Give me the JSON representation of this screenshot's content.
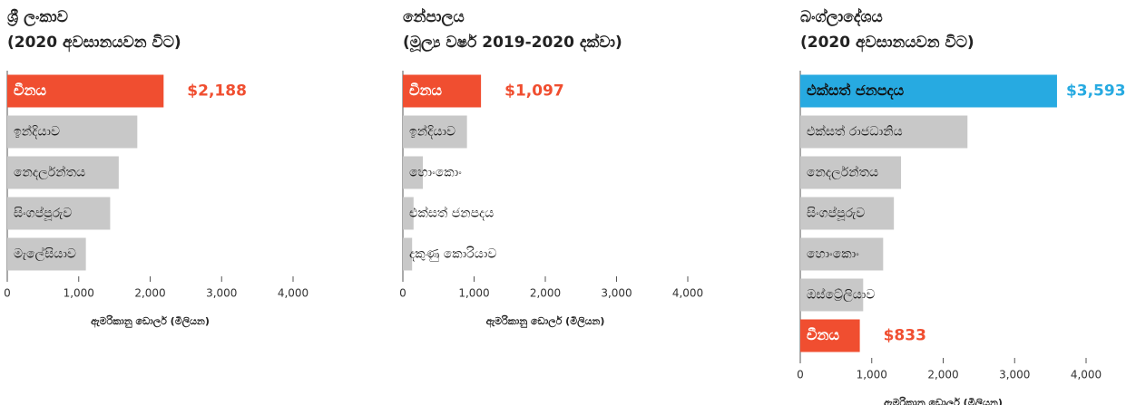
{
  "chart_data": [
    {
      "type": "bar",
      "title": [
        "ශ්‍රී ලංකාව",
        "(2020 අවසානයවන විට)"
      ],
      "categories": [
        "චීනය",
        "ඉන්දියාව",
        "නෙදර්ලන්තය",
        "සිංගප්පූරුව",
        "මැලේසියාව"
      ],
      "values": [
        2188,
        1820,
        1560,
        1440,
        1100
      ],
      "value_labels": [
        "$2,188",
        null,
        null,
        null,
        null
      ],
      "colors": [
        "#f04e30",
        "#c8c8c8",
        "#c8c8c8",
        "#c8c8c8",
        "#c8c8c8"
      ],
      "xlim": [
        0,
        4000
      ],
      "xticks": [
        0,
        {
          "value": 1000,
          "label": "1,000"
        },
        {
          "value": 2000,
          "label": "2,000"
        },
        {
          "value": 3000,
          "label": "3,000"
        },
        {
          "value": 4000,
          "label": "4,000"
        }
      ],
      "x_label": "ඇමරිකානු ඩොලර් (මිලියන)"
    },
    {
      "type": "bar",
      "title": [
        "නේපාලය",
        "(මූල්‍ය වර්ෂ 2019-2020 දක්වා)"
      ],
      "categories": [
        "චීනය",
        "ඉන්දියාව",
        "හොංකොං",
        "එක්සත් ජනපදය",
        "දකුණු කොරියාව"
      ],
      "values": [
        1097,
        900,
        280,
        150,
        130
      ],
      "value_labels": [
        "$1,097",
        null,
        null,
        null,
        null
      ],
      "colors": [
        "#f04e30",
        "#c8c8c8",
        "#c8c8c8",
        "#c8c8c8",
        "#c8c8c8"
      ],
      "xlim": [
        0,
        4000
      ],
      "xticks": [
        0,
        {
          "value": 1000,
          "label": "1,000"
        },
        {
          "value": 2000,
          "label": "2,000"
        },
        {
          "value": 3000,
          "label": "3,000"
        },
        {
          "value": 4000,
          "label": "4,000"
        }
      ],
      "x_label": "ඇමරිකානු ඩොලර් (මිලියන)"
    },
    {
      "type": "bar",
      "title": [
        "බංග්ලාදේශය",
        "(2020 අවසානයවන විට)"
      ],
      "categories": [
        "එක්සත් ජනපදය",
        "එක්සත් රාජධානිය",
        "නෙදර්ලන්තය",
        "සිංගප්පූරුව",
        "හොංකොං",
        "ඔස්ට්‍රේලියාව",
        "චීනය"
      ],
      "values": [
        3593,
        2340,
        1410,
        1310,
        1160,
        880,
        833
      ],
      "value_labels": [
        "$3,593",
        null,
        null,
        null,
        null,
        null,
        "$833"
      ],
      "colors": [
        "#27aae1",
        "#c8c8c8",
        "#c8c8c8",
        "#c8c8c8",
        "#c8c8c8",
        "#c8c8c8",
        "#f04e30"
      ],
      "xlim": [
        0,
        4000
      ],
      "xticks": [
        0,
        {
          "value": 1000,
          "label": "1,000"
        },
        {
          "value": 2000,
          "label": "2,000"
        },
        {
          "value": 3000,
          "label": "3,000"
        },
        {
          "value": 4000,
          "label": "4,000"
        }
      ],
      "x_label": "ඇමරිකානු ඩොලර් (මිලියන)"
    }
  ]
}
